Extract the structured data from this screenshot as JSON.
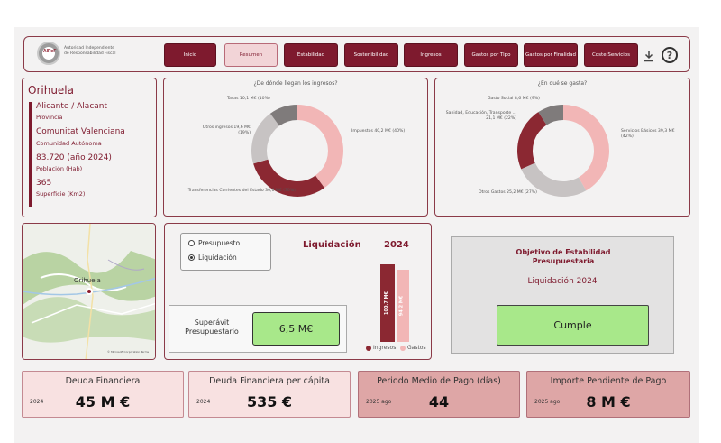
{
  "brand": {
    "logo_text": "AIReF",
    "name_line1": "Autoridad Independiente",
    "name_line2": "de Responsabilidad Fiscal"
  },
  "nav": [
    {
      "label": "Inicio",
      "active": false
    },
    {
      "label": "Resumen",
      "active": true
    },
    {
      "label": "Estabilidad",
      "active": false
    },
    {
      "label": "Sostenibilidad",
      "active": false
    },
    {
      "label": "Ingresos",
      "active": false
    },
    {
      "label": "Gastos por Tipo",
      "active": false
    },
    {
      "label": "Gastos por Finalidad",
      "active": false
    },
    {
      "label": "Coste Servicios",
      "active": false
    }
  ],
  "icons": {
    "download": "download-icon",
    "help": "help-icon"
  },
  "info": {
    "city": "Orihuela",
    "province": "Alicante / Alacant",
    "province_label": "Provincia",
    "community": "Comunitat Valenciana",
    "community_label": "Comunidad Autónoma",
    "population": "83.720 (año 2024)",
    "population_label": "Población (Hab)",
    "surface": "365",
    "surface_label": "Superficie (Km2)"
  },
  "income_chart": {
    "title": "¿De dónde llegan los ingresos?",
    "slices": [
      {
        "label": "Impuestos 40,2 M€ (40%)",
        "value": 40.2,
        "color": "#f2b6b6"
      },
      {
        "label": "Transferencias Corrientes del Estado 30,6 M€ (30%)",
        "value": 30.6,
        "color": "#8b2832"
      },
      {
        "label": "Otros ingresos 19,6 M€ (19%)",
        "value": 19.6,
        "color": "#c7c3c3"
      },
      {
        "label": "Tasas 10,1 M€ (10%)",
        "value": 10.1,
        "color": "#7f7b7b"
      }
    ]
  },
  "expense_chart": {
    "title": "¿En qué se gasta?",
    "slices": [
      {
        "label": "Servicios Básicos 39,3 M€ (42%)",
        "value": 39.3,
        "color": "#f2b6b6"
      },
      {
        "label": "Otros Gastos 25,2 M€ (27%)",
        "value": 25.2,
        "color": "#c7c3c3"
      },
      {
        "label": "Sanidad, Educación, Transporte ... 21,1 M€ (22%)",
        "value": 21.1,
        "color": "#8b2832"
      },
      {
        "label": "Gasto Social 8,6 M€ (9%)",
        "value": 8.6,
        "color": "#7f7b7b"
      }
    ]
  },
  "map": {
    "town": "Orihuela",
    "credit": "© Microsoft Corporation  Terms"
  },
  "selector": {
    "options": [
      {
        "label": "Presupuesto",
        "selected": false
      },
      {
        "label": "Liquidación",
        "selected": true
      }
    ]
  },
  "liquidacion": {
    "title": "Liquidación",
    "year": "2024",
    "ingresos_value": 100.7,
    "ingresos_label": "100,7 M€",
    "gastos_value": 94.2,
    "gastos_label": "94,2 M€",
    "legend_ingresos": "Ingresos",
    "legend_gastos": "Gastos",
    "color_ingresos": "#8b2832",
    "color_gastos": "#f2b6b6"
  },
  "superavit": {
    "label": "Superávit Presupuestario",
    "value": "6,5 M€"
  },
  "objetivo": {
    "title": "Objetivo de Estabilidad Presupuestaria",
    "subtitle": "Liquidación 2024",
    "value": "Cumple"
  },
  "cards": [
    {
      "title": "Deuda Financiera",
      "year": "2024",
      "value": "45 M €",
      "style": "light"
    },
    {
      "title": "Deuda Financiera per cápita",
      "year": "2024",
      "value": "535 €",
      "style": "light"
    },
    {
      "title": "Periodo Medio de Pago (días)",
      "year": "2025 ago",
      "value": "44",
      "style": "dark"
    },
    {
      "title": "Importe Pendiente de Pago",
      "year": "2025 ago",
      "value": "8 M €",
      "style": "dark"
    }
  ]
}
